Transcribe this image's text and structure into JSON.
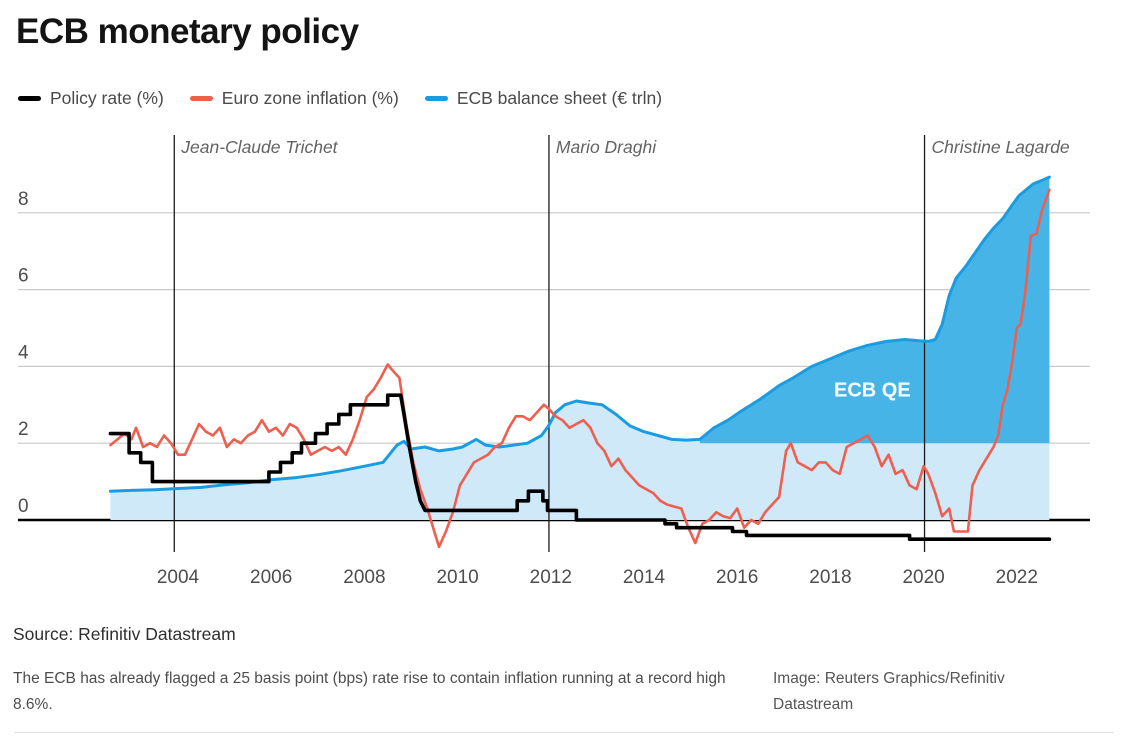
{
  "title": "ECB monetary policy",
  "legend": [
    {
      "label": "Policy rate (%)",
      "color": "#000000"
    },
    {
      "label": "Euro zone inflation (%)",
      "color": "#ee5f4f"
    },
    {
      "label": "ECB balance sheet (€ trln)",
      "color": "#1a9ce0"
    }
  ],
  "source": "Source: Refinitiv Datastream",
  "caption": "The ECB has already flagged a 25 basis point (bps) rate rise to contain inflation running at a record high 8.6%.",
  "credit": "Image: Reuters Graphics/Refinitiv Datastream",
  "colors": {
    "grid": "#c9c9c9",
    "axis": "#000000",
    "president_line": "#1a1a1a",
    "light_area": "#cfe9f9",
    "qe_area": "#47b4e8"
  },
  "chart_data": {
    "type": "line",
    "title": "ECB monetary policy",
    "x_axis": {
      "ticks": [
        2004,
        2006,
        2008,
        2010,
        2012,
        2014,
        2016,
        2018,
        2020,
        2022
      ],
      "range": [
        2002.5,
        2022.8
      ]
    },
    "y_axis": {
      "ticks": [
        0,
        2,
        4,
        6,
        8
      ],
      "range": [
        -0.8,
        9.0
      ]
    },
    "annotations": {
      "presidents": [
        {
          "label": "Jean-Claude Trichet",
          "year": 2003.92
        },
        {
          "label": "Mario Draghi",
          "year": 2011.96
        },
        {
          "label": "Christine Lagarde",
          "year": 2020.02
        }
      ],
      "area_label": {
        "text": "ECB QE",
        "x_year": 2018.9,
        "y_value": 3.4
      }
    },
    "series": [
      {
        "id": "balance-sheet",
        "name": "ECB balance sheet (€ trln)",
        "color": "#1a9ce0",
        "width": 3,
        "area": true,
        "area_color": "#cfe9f9",
        "qe": {
          "start_year": 2015.2,
          "base_value": 2.0,
          "color": "#47b4e8"
        },
        "points": [
          [
            2002.55,
            0.75
          ],
          [
            2003.0,
            0.77
          ],
          [
            2003.5,
            0.79
          ],
          [
            2004.0,
            0.82
          ],
          [
            2004.5,
            0.85
          ],
          [
            2005.0,
            0.92
          ],
          [
            2005.5,
            0.97
          ],
          [
            2006.0,
            1.05
          ],
          [
            2006.5,
            1.1
          ],
          [
            2007.0,
            1.18
          ],
          [
            2007.5,
            1.28
          ],
          [
            2008.0,
            1.4
          ],
          [
            2008.4,
            1.5
          ],
          [
            2008.7,
            1.95
          ],
          [
            2008.85,
            2.05
          ],
          [
            2009.0,
            1.85
          ],
          [
            2009.3,
            1.9
          ],
          [
            2009.6,
            1.8
          ],
          [
            2009.9,
            1.85
          ],
          [
            2010.1,
            1.9
          ],
          [
            2010.4,
            2.1
          ],
          [
            2010.6,
            1.95
          ],
          [
            2010.9,
            1.9
          ],
          [
            2011.2,
            1.95
          ],
          [
            2011.5,
            2.0
          ],
          [
            2011.8,
            2.2
          ],
          [
            2011.95,
            2.45
          ],
          [
            2012.1,
            2.8
          ],
          [
            2012.3,
            3.0
          ],
          [
            2012.55,
            3.1
          ],
          [
            2012.8,
            3.05
          ],
          [
            2013.1,
            3.0
          ],
          [
            2013.4,
            2.75
          ],
          [
            2013.7,
            2.45
          ],
          [
            2014.0,
            2.3
          ],
          [
            2014.3,
            2.2
          ],
          [
            2014.6,
            2.1
          ],
          [
            2014.9,
            2.08
          ],
          [
            2015.2,
            2.1
          ],
          [
            2015.5,
            2.4
          ],
          [
            2015.8,
            2.6
          ],
          [
            2016.1,
            2.85
          ],
          [
            2016.5,
            3.15
          ],
          [
            2016.9,
            3.5
          ],
          [
            2017.2,
            3.7
          ],
          [
            2017.6,
            4.0
          ],
          [
            2018.0,
            4.2
          ],
          [
            2018.4,
            4.4
          ],
          [
            2018.8,
            4.55
          ],
          [
            2019.2,
            4.65
          ],
          [
            2019.6,
            4.7
          ],
          [
            2019.9,
            4.67
          ],
          [
            2020.1,
            4.65
          ],
          [
            2020.25,
            4.7
          ],
          [
            2020.4,
            5.1
          ],
          [
            2020.55,
            5.85
          ],
          [
            2020.7,
            6.3
          ],
          [
            2020.9,
            6.6
          ],
          [
            2021.1,
            6.95
          ],
          [
            2021.3,
            7.3
          ],
          [
            2021.5,
            7.6
          ],
          [
            2021.7,
            7.85
          ],
          [
            2021.9,
            8.2
          ],
          [
            2022.05,
            8.45
          ],
          [
            2022.2,
            8.6
          ],
          [
            2022.35,
            8.75
          ],
          [
            2022.55,
            8.85
          ],
          [
            2022.7,
            8.93
          ]
        ]
      },
      {
        "id": "inflation",
        "name": "Euro zone inflation (%)",
        "color": "#ee5f4f",
        "width": 2.6,
        "points": [
          [
            2002.55,
            1.95
          ],
          [
            2002.7,
            2.1
          ],
          [
            2002.85,
            2.25
          ],
          [
            2003.0,
            2.1
          ],
          [
            2003.1,
            2.4
          ],
          [
            2003.25,
            1.9
          ],
          [
            2003.4,
            2.0
          ],
          [
            2003.55,
            1.9
          ],
          [
            2003.7,
            2.2
          ],
          [
            2003.85,
            2.0
          ],
          [
            2004.0,
            1.7
          ],
          [
            2004.15,
            1.7
          ],
          [
            2004.3,
            2.1
          ],
          [
            2004.45,
            2.5
          ],
          [
            2004.6,
            2.3
          ],
          [
            2004.75,
            2.2
          ],
          [
            2004.9,
            2.4
          ],
          [
            2005.05,
            1.9
          ],
          [
            2005.2,
            2.1
          ],
          [
            2005.35,
            2.0
          ],
          [
            2005.5,
            2.2
          ],
          [
            2005.65,
            2.3
          ],
          [
            2005.8,
            2.6
          ],
          [
            2005.95,
            2.3
          ],
          [
            2006.1,
            2.4
          ],
          [
            2006.25,
            2.2
          ],
          [
            2006.4,
            2.5
          ],
          [
            2006.55,
            2.4
          ],
          [
            2006.7,
            2.1
          ],
          [
            2006.85,
            1.7
          ],
          [
            2007.0,
            1.8
          ],
          [
            2007.15,
            1.9
          ],
          [
            2007.3,
            1.8
          ],
          [
            2007.45,
            1.9
          ],
          [
            2007.6,
            1.7
          ],
          [
            2007.75,
            2.1
          ],
          [
            2007.9,
            2.6
          ],
          [
            2008.05,
            3.2
          ],
          [
            2008.2,
            3.4
          ],
          [
            2008.35,
            3.7
          ],
          [
            2008.5,
            4.05
          ],
          [
            2008.6,
            3.9
          ],
          [
            2008.75,
            3.7
          ],
          [
            2008.9,
            2.5
          ],
          [
            2009.05,
            1.5
          ],
          [
            2009.2,
            0.8
          ],
          [
            2009.35,
            0.3
          ],
          [
            2009.5,
            -0.3
          ],
          [
            2009.6,
            -0.7
          ],
          [
            2009.75,
            -0.3
          ],
          [
            2009.9,
            0.2
          ],
          [
            2010.05,
            0.9
          ],
          [
            2010.2,
            1.2
          ],
          [
            2010.35,
            1.5
          ],
          [
            2010.5,
            1.6
          ],
          [
            2010.65,
            1.7
          ],
          [
            2010.8,
            1.9
          ],
          [
            2010.95,
            2.0
          ],
          [
            2011.1,
            2.4
          ],
          [
            2011.25,
            2.7
          ],
          [
            2011.4,
            2.7
          ],
          [
            2011.55,
            2.6
          ],
          [
            2011.7,
            2.8
          ],
          [
            2011.85,
            3.0
          ],
          [
            2011.95,
            2.9
          ],
          [
            2012.1,
            2.7
          ],
          [
            2012.25,
            2.6
          ],
          [
            2012.4,
            2.4
          ],
          [
            2012.55,
            2.5
          ],
          [
            2012.7,
            2.6
          ],
          [
            2012.85,
            2.4
          ],
          [
            2013.0,
            2.0
          ],
          [
            2013.15,
            1.8
          ],
          [
            2013.3,
            1.4
          ],
          [
            2013.45,
            1.6
          ],
          [
            2013.6,
            1.3
          ],
          [
            2013.75,
            1.1
          ],
          [
            2013.9,
            0.9
          ],
          [
            2014.05,
            0.8
          ],
          [
            2014.2,
            0.7
          ],
          [
            2014.35,
            0.5
          ],
          [
            2014.5,
            0.4
          ],
          [
            2014.65,
            0.35
          ],
          [
            2014.8,
            0.3
          ],
          [
            2014.95,
            -0.2
          ],
          [
            2015.1,
            -0.6
          ],
          [
            2015.25,
            -0.1
          ],
          [
            2015.4,
            0.0
          ],
          [
            2015.55,
            0.2
          ],
          [
            2015.7,
            0.1
          ],
          [
            2015.85,
            0.05
          ],
          [
            2016.0,
            0.3
          ],
          [
            2016.15,
            -0.2
          ],
          [
            2016.3,
            0.0
          ],
          [
            2016.45,
            -0.1
          ],
          [
            2016.6,
            0.2
          ],
          [
            2016.75,
            0.4
          ],
          [
            2016.9,
            0.6
          ],
          [
            2017.05,
            1.8
          ],
          [
            2017.15,
            2.0
          ],
          [
            2017.3,
            1.5
          ],
          [
            2017.45,
            1.4
          ],
          [
            2017.6,
            1.3
          ],
          [
            2017.75,
            1.5
          ],
          [
            2017.9,
            1.5
          ],
          [
            2018.05,
            1.3
          ],
          [
            2018.2,
            1.2
          ],
          [
            2018.35,
            1.9
          ],
          [
            2018.5,
            2.0
          ],
          [
            2018.65,
            2.1
          ],
          [
            2018.8,
            2.2
          ],
          [
            2018.95,
            1.9
          ],
          [
            2019.1,
            1.4
          ],
          [
            2019.25,
            1.7
          ],
          [
            2019.4,
            1.2
          ],
          [
            2019.55,
            1.3
          ],
          [
            2019.7,
            0.9
          ],
          [
            2019.85,
            0.8
          ],
          [
            2020.0,
            1.4
          ],
          [
            2020.1,
            1.2
          ],
          [
            2020.25,
            0.7
          ],
          [
            2020.4,
            0.1
          ],
          [
            2020.55,
            0.3
          ],
          [
            2020.65,
            -0.3
          ],
          [
            2020.8,
            -0.3
          ],
          [
            2020.95,
            -0.3
          ],
          [
            2021.05,
            0.9
          ],
          [
            2021.2,
            1.3
          ],
          [
            2021.35,
            1.6
          ],
          [
            2021.5,
            1.9
          ],
          [
            2021.6,
            2.2
          ],
          [
            2021.7,
            3.0
          ],
          [
            2021.8,
            3.4
          ],
          [
            2021.9,
            4.1
          ],
          [
            2022.0,
            5.0
          ],
          [
            2022.08,
            5.1
          ],
          [
            2022.18,
            5.9
          ],
          [
            2022.3,
            7.4
          ],
          [
            2022.42,
            7.45
          ],
          [
            2022.55,
            8.1
          ],
          [
            2022.7,
            8.6
          ]
        ]
      },
      {
        "id": "policy-rate",
        "name": "Policy rate (%)",
        "color": "#000000",
        "width": 3.6,
        "points": [
          [
            2002.55,
            2.25
          ],
          [
            2002.95,
            2.25
          ],
          [
            2002.95,
            1.75
          ],
          [
            2003.2,
            1.75
          ],
          [
            2003.2,
            1.5
          ],
          [
            2003.45,
            1.5
          ],
          [
            2003.45,
            1.0
          ],
          [
            2005.95,
            1.0
          ],
          [
            2005.95,
            1.25
          ],
          [
            2006.2,
            1.25
          ],
          [
            2006.2,
            1.5
          ],
          [
            2006.45,
            1.5
          ],
          [
            2006.45,
            1.75
          ],
          [
            2006.65,
            1.75
          ],
          [
            2006.65,
            2.0
          ],
          [
            2006.95,
            2.0
          ],
          [
            2006.95,
            2.25
          ],
          [
            2007.2,
            2.25
          ],
          [
            2007.2,
            2.5
          ],
          [
            2007.45,
            2.5
          ],
          [
            2007.45,
            2.75
          ],
          [
            2007.7,
            2.75
          ],
          [
            2007.7,
            3.0
          ],
          [
            2008.5,
            3.0
          ],
          [
            2008.5,
            3.25
          ],
          [
            2008.78,
            3.25
          ],
          [
            2008.85,
            2.75
          ],
          [
            2008.95,
            2.0
          ],
          [
            2009.1,
            1.0
          ],
          [
            2009.2,
            0.5
          ],
          [
            2009.3,
            0.25
          ],
          [
            2011.28,
            0.25
          ],
          [
            2011.28,
            0.5
          ],
          [
            2011.52,
            0.5
          ],
          [
            2011.52,
            0.75
          ],
          [
            2011.83,
            0.75
          ],
          [
            2011.83,
            0.5
          ],
          [
            2011.93,
            0.5
          ],
          [
            2011.93,
            0.25
          ],
          [
            2012.55,
            0.25
          ],
          [
            2012.55,
            0.0
          ],
          [
            2014.45,
            0.0
          ],
          [
            2014.45,
            -0.1
          ],
          [
            2014.7,
            -0.1
          ],
          [
            2014.7,
            -0.2
          ],
          [
            2015.9,
            -0.2
          ],
          [
            2015.9,
            -0.3
          ],
          [
            2016.2,
            -0.3
          ],
          [
            2016.2,
            -0.4
          ],
          [
            2019.7,
            -0.4
          ],
          [
            2019.7,
            -0.5
          ],
          [
            2022.7,
            -0.5
          ]
        ]
      }
    ]
  }
}
